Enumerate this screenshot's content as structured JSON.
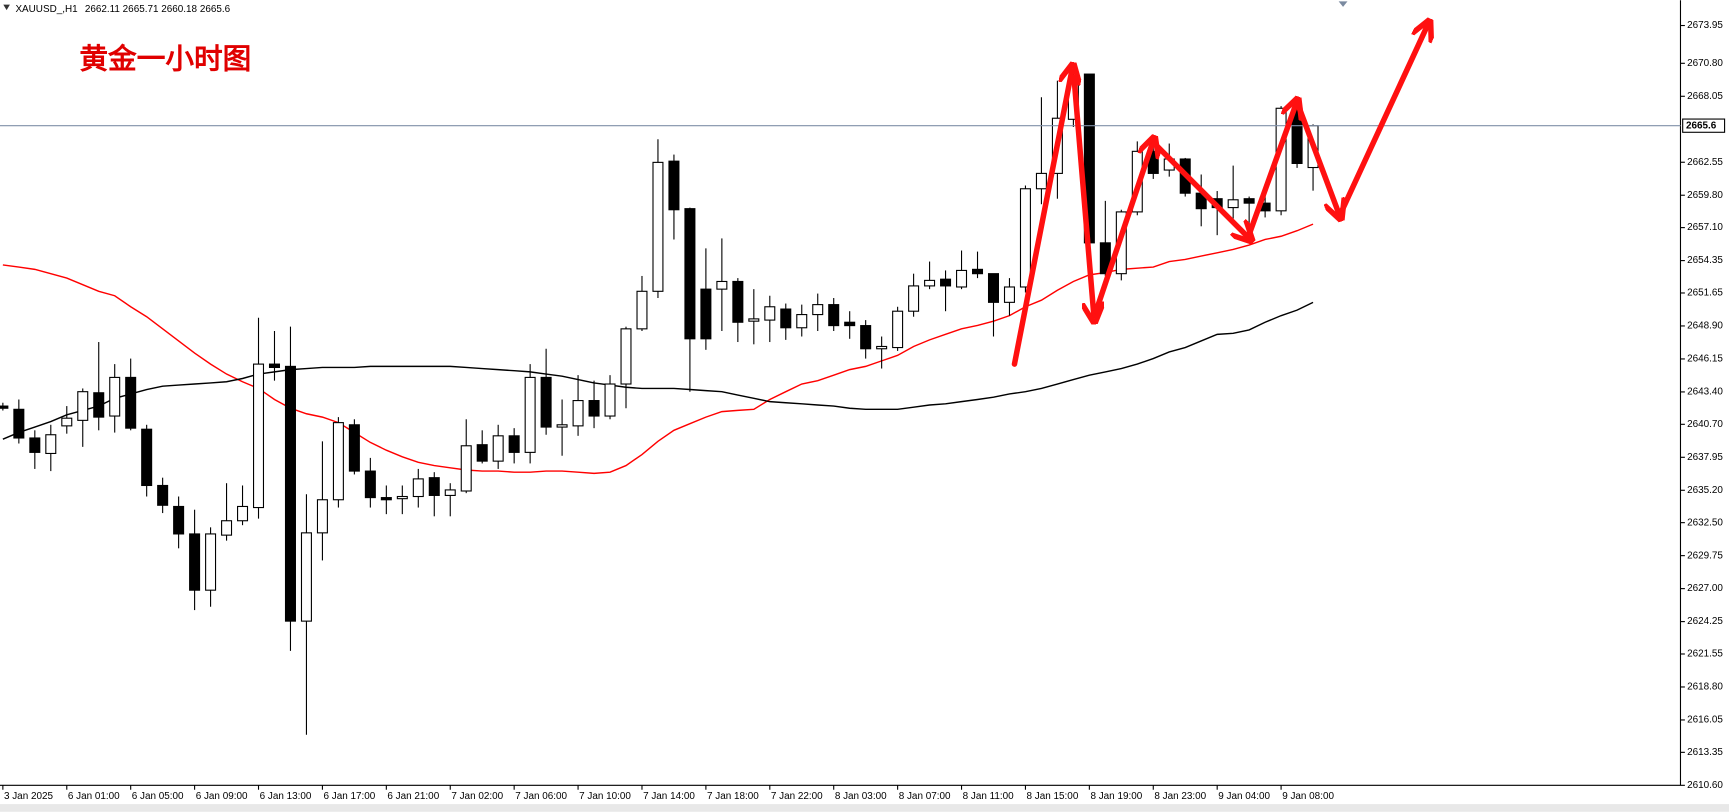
{
  "chart_data": {
    "type": "candlestick",
    "symbol": "XAUUSD_,H1",
    "title": "黄金一小时图",
    "bull_color": "#ffffff",
    "bear_color": "#000000",
    "categories": [
      "3 Jan 2025",
      null,
      null,
      null,
      "6 Jan 01:00",
      null,
      null,
      null,
      "6 Jan 05:00",
      null,
      null,
      null,
      "6 Jan 09:00",
      null,
      null,
      null,
      "6 Jan 13:00",
      null,
      null,
      null,
      "6 Jan 17:00",
      null,
      null,
      null,
      "6 Jan 21:00",
      null,
      null,
      null,
      "7 Jan 02:00",
      null,
      null,
      null,
      "7 Jan 06:00",
      null,
      null,
      null,
      "7 Jan 10:00",
      null,
      null,
      null,
      "7 Jan 14:00",
      null,
      null,
      null,
      "7 Jan 18:00",
      null,
      null,
      null,
      "7 Jan 22:00",
      null,
      null,
      null,
      "8 Jan 03:00",
      null,
      null,
      null,
      "8 Jan 07:00",
      null,
      null,
      null,
      "8 Jan 11:00",
      null,
      null,
      null,
      "8 Jan 15:00",
      null,
      null,
      null,
      "8 Jan 19:00",
      null,
      null,
      null,
      "8 Jan 23:00",
      null,
      null,
      null,
      "9 Jan 04:00",
      null,
      null,
      null,
      "9 Jan 08:00",
      null,
      null
    ],
    "open": [
      2642.22,
      2641.95,
      2639.56,
      2638.27,
      2640.57,
      2641.03,
      2643.33,
      2641.39,
      2644.61,
      2640.29,
      2635.6,
      2633.85,
      2631.56,
      2626.87,
      2631.46,
      2632.66,
      2633.76,
      2645.72,
      2645.53,
      2624.29,
      2631.65,
      2634.41,
      2640.66,
      2636.8,
      2634.59,
      2634.5,
      2634.68,
      2636.25,
      2634.77,
      2635.14,
      2639.0,
      2637.63,
      2639.74,
      2638.36,
      2644.61,
      2640.47,
      2640.57,
      2642.68,
      2641.39,
      2644.06,
      2648.66,
      2651.79,
      2662.64,
      2658.68,
      2651.97,
      2651.97,
      2652.61,
      2649.3,
      2649.39,
      2650.31,
      2648.75,
      2649.85,
      2650.68,
      2649.21,
      2648.93,
      2647.0,
      2647.1,
      2650.13,
      2652.24,
      2652.8,
      2652.15,
      2653.62,
      2653.26,
      2650.87,
      2652.15,
      2660.34,
      2661.62,
      2666.13,
      2669.9,
      2655.83,
      2653.26,
      2658.41,
      2663.46,
      2661.9,
      2662.82,
      2659.97,
      2659.51,
      2658.77,
      2659.51,
      2659.14,
      2658.5,
      2667.05,
      2662.11
    ],
    "high": [
      2642.5,
      2642.77,
      2640.2,
      2640.66,
      2642.22,
      2643.69,
      2647.56,
      2645.72,
      2646.18,
      2640.66,
      2636.25,
      2634.68,
      2633.58,
      2632.11,
      2635.79,
      2635.6,
      2649.58,
      2648.48,
      2648.84,
      2634.87,
      2639.28,
      2641.3,
      2641.12,
      2637.9,
      2635.6,
      2635.6,
      2636.98,
      2636.71,
      2635.79,
      2641.12,
      2640.2,
      2640.66,
      2640.38,
      2645.72,
      2647.0,
      2642.77,
      2644.8,
      2644.34,
      2644.8,
      2648.84,
      2653.07,
      2664.47,
      2663.19,
      2658.77,
      2655.37,
      2656.2,
      2652.89,
      2651.97,
      2651.42,
      2650.77,
      2650.68,
      2651.6,
      2651.23,
      2650.13,
      2649.39,
      2648.02,
      2650.5,
      2653.26,
      2654.27,
      2653.53,
      2655.19,
      2655.1,
      2653.26,
      2652.89,
      2660.61,
      2667.97,
      2669.35,
      2670.54,
      2669.9,
      2659.33,
      2658.59,
      2664.29,
      2664.47,
      2664.11,
      2662.91,
      2661.53,
      2660.15,
      2662.27,
      2659.69,
      2659.88,
      2667.23,
      2667.51,
      2665.71
    ],
    "low": [
      2641.85,
      2639.1,
      2636.98,
      2636.8,
      2639.92,
      2638.82,
      2640.2,
      2640.01,
      2640.2,
      2634.68,
      2633.3,
      2630.36,
      2625.21,
      2625.49,
      2631.0,
      2632.29,
      2632.84,
      2644.34,
      2621.81,
      2614.82,
      2629.35,
      2633.76,
      2636.52,
      2633.76,
      2633.21,
      2633.21,
      2633.76,
      2633.03,
      2633.03,
      2634.96,
      2637.44,
      2636.98,
      2637.44,
      2637.44,
      2639.83,
      2638.08,
      2639.74,
      2640.38,
      2641.12,
      2642.04,
      2648.48,
      2651.23,
      2656.11,
      2643.42,
      2646.91,
      2648.48,
      2647.56,
      2647.37,
      2647.56,
      2647.74,
      2648.02,
      2648.48,
      2648.48,
      2647.83,
      2646.18,
      2645.35,
      2646.82,
      2649.67,
      2651.97,
      2650.13,
      2651.97,
      2652.89,
      2648.02,
      2649.76,
      2651.69,
      2659.05,
      2659.51,
      2665.49,
      2655.74,
      2653.07,
      2652.7,
      2658.13,
      2661.16,
      2661.35,
      2659.69,
      2657.21,
      2656.47,
      2657.85,
      2657.21,
      2657.95,
      2658.13,
      2662.08,
      2660.18
    ],
    "close": [
      2642.04,
      2639.56,
      2638.36,
      2639.83,
      2641.21,
      2643.42,
      2641.3,
      2644.61,
      2640.38,
      2635.6,
      2633.95,
      2631.56,
      2626.87,
      2631.56,
      2632.66,
      2633.85,
      2645.72,
      2645.44,
      2624.29,
      2631.65,
      2634.41,
      2640.84,
      2636.8,
      2634.59,
      2634.41,
      2634.68,
      2636.15,
      2634.77,
      2635.23,
      2638.91,
      2637.63,
      2639.74,
      2638.36,
      2644.61,
      2640.47,
      2640.66,
      2642.68,
      2641.39,
      2644.06,
      2648.66,
      2651.79,
      2662.54,
      2658.59,
      2647.83,
      2647.83,
      2652.61,
      2649.21,
      2649.49,
      2650.5,
      2648.75,
      2649.85,
      2650.68,
      2648.93,
      2648.93,
      2647.0,
      2647.19,
      2650.13,
      2652.24,
      2652.7,
      2652.24,
      2653.53,
      2653.26,
      2650.87,
      2652.15,
      2660.34,
      2661.62,
      2666.22,
      2669.53,
      2655.83,
      2653.26,
      2658.41,
      2663.46,
      2661.62,
      2662.82,
      2659.97,
      2658.68,
      2658.77,
      2659.42,
      2659.14,
      2658.5,
      2667.05,
      2662.45,
      2665.6
    ],
    "lines": [
      {
        "color": "#ff0000",
        "values": [
          2653.99,
          2653.81,
          2653.62,
          2653.26,
          2652.89,
          2652.34,
          2651.79,
          2651.42,
          2650.5,
          2649.67,
          2648.66,
          2647.65,
          2646.64,
          2645.72,
          2644.89,
          2644.25,
          2643.69,
          2642.77,
          2642.04,
          2641.58,
          2641.3,
          2640.84,
          2640.02,
          2639.19,
          2638.54,
          2637.99,
          2637.53,
          2637.26,
          2637.07,
          2636.89,
          2636.8,
          2636.8,
          2636.71,
          2636.71,
          2636.8,
          2636.8,
          2636.71,
          2636.61,
          2636.71,
          2637.26,
          2638.18,
          2639.28,
          2640.2,
          2640.75,
          2641.3,
          2641.76,
          2641.86,
          2641.95,
          2642.77,
          2643.42,
          2644.06,
          2644.34,
          2644.8,
          2645.26,
          2645.53,
          2645.99,
          2646.45,
          2647.19,
          2647.74,
          2648.2,
          2648.66,
          2648.94,
          2649.3,
          2649.76,
          2650.5,
          2651.05,
          2651.88,
          2652.61,
          2653.16,
          2653.35,
          2653.62,
          2653.72,
          2653.81,
          2654.27,
          2654.45,
          2654.73,
          2655.0,
          2655.28,
          2655.65,
          2656.11,
          2656.38,
          2656.84,
          2657.39
        ]
      },
      {
        "color": "#000000",
        "values": [
          2639.46,
          2640.02,
          2640.47,
          2640.93,
          2641.49,
          2641.86,
          2642.22,
          2642.87,
          2643.23,
          2643.6,
          2643.88,
          2643.97,
          2644.06,
          2644.15,
          2644.25,
          2644.52,
          2644.89,
          2645.07,
          2645.26,
          2645.35,
          2645.44,
          2645.44,
          2645.44,
          2645.53,
          2645.53,
          2645.53,
          2645.53,
          2645.53,
          2645.53,
          2645.44,
          2645.35,
          2645.26,
          2645.17,
          2645.07,
          2644.89,
          2644.71,
          2644.43,
          2644.15,
          2643.97,
          2643.79,
          2643.69,
          2643.69,
          2643.69,
          2643.6,
          2643.51,
          2643.42,
          2643.14,
          2642.87,
          2642.59,
          2642.5,
          2642.41,
          2642.31,
          2642.22,
          2642.04,
          2641.95,
          2641.95,
          2641.95,
          2642.13,
          2642.31,
          2642.41,
          2642.59,
          2642.77,
          2642.96,
          2643.23,
          2643.42,
          2643.69,
          2644.06,
          2644.43,
          2644.8,
          2645.07,
          2645.35,
          2645.72,
          2646.18,
          2646.73,
          2647.1,
          2647.65,
          2648.2,
          2648.29,
          2648.57,
          2649.21,
          2649.76,
          2650.22,
          2650.87
        ]
      }
    ],
    "ylim": [
      2610.6,
      2676.06
    ],
    "yticks": [
      2673.95,
      {
        "value": 2670.8,
        "label": "2670.80"
      },
      2668.05,
      2662.55,
      {
        "value": 2659.8,
        "label": "2659.80"
      },
      {
        "value": 2657.1,
        "label": "2657.10"
      },
      2654.35,
      2651.65,
      {
        "value": 2648.9,
        "label": "2648.90"
      },
      2646.15,
      {
        "value": 2643.4,
        "label": "2643.40"
      },
      {
        "value": 2640.7,
        "label": "2640.70"
      },
      2637.95,
      {
        "value": 2635.2,
        "label": "2635.20"
      },
      {
        "value": 2632.5,
        "label": "2632.50"
      },
      2629.75,
      {
        "value": 2627.0,
        "label": "2627.00"
      },
      2624.25,
      2621.55,
      {
        "value": 2618.8,
        "label": "2618.80"
      },
      2616.05,
      2613.35,
      {
        "value": 2610.6,
        "label": "2610.60"
      }
    ],
    "grid": false
  }
}
